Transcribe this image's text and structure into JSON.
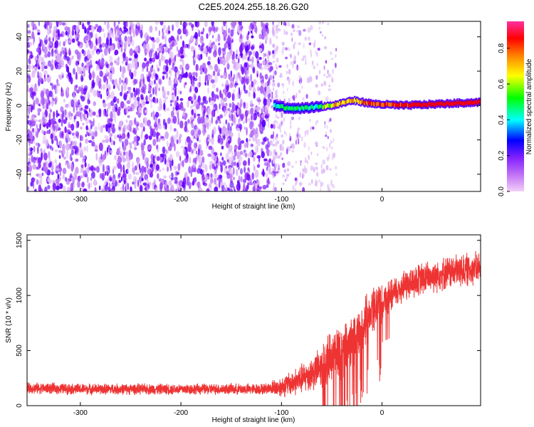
{
  "title": "C2E5.2024.255.18.26.G20",
  "chart_data": [
    {
      "type": "heatmap",
      "xlabel": "Height of straight line (km)",
      "ylabel": "Frequency (Hz)",
      "xlim": [
        -353,
        98
      ],
      "ylim": [
        -50,
        49
      ],
      "xticks": [
        -300,
        -200,
        -100,
        0
      ],
      "yticks": [
        -40,
        -20,
        0,
        20,
        40
      ],
      "colorbar": {
        "label": "Normalized spectral amplitude",
        "range": [
          0,
          0.95
        ],
        "ticks": [
          "0.0",
          "0.2",
          "0.4",
          "0.6",
          "0.8"
        ],
        "colors": [
          "#e8b8f5",
          "#b040ff",
          "#6000ff",
          "#0000ff",
          "#00ffff",
          "#00ff00",
          "#ffff00",
          "#ff8000",
          "#ff0000"
        ]
      },
      "features": {
        "noise_region_x": [
          -353,
          -108
        ],
        "fading_noise_x": [
          -108,
          -45
        ],
        "signal_band": [
          {
            "x": -108,
            "y": 0
          },
          {
            "x": -90,
            "y": -2
          },
          {
            "x": -70,
            "y": -1
          },
          {
            "x": -50,
            "y": 0
          },
          {
            "x": -30,
            "y": 3
          },
          {
            "x": -10,
            "y": 1
          },
          {
            "x": 20,
            "y": 0
          },
          {
            "x": 60,
            "y": 1
          },
          {
            "x": 98,
            "y": 2
          }
        ]
      }
    },
    {
      "type": "line",
      "xlabel": "Height of straight line (km)",
      "ylabel": "SNR (10 * v/v)",
      "xlim": [
        -353,
        98
      ],
      "ylim": [
        0,
        1550
      ],
      "xticks": [
        -300,
        -200,
        -100,
        0
      ],
      "yticks": [
        0,
        500,
        1000,
        1500
      ],
      "series": [
        {
          "color": "#ee3333",
          "x": [
            -353,
            -300,
            -250,
            -200,
            -150,
            -120,
            -100,
            -80,
            -60,
            -40,
            -20,
            -10,
            0,
            10,
            20,
            40,
            60,
            80,
            98
          ],
          "y": [
            160,
            150,
            150,
            150,
            150,
            150,
            170,
            240,
            350,
            500,
            700,
            850,
            950,
            1000,
            1080,
            1150,
            1200,
            1230,
            1250
          ]
        }
      ]
    }
  ]
}
